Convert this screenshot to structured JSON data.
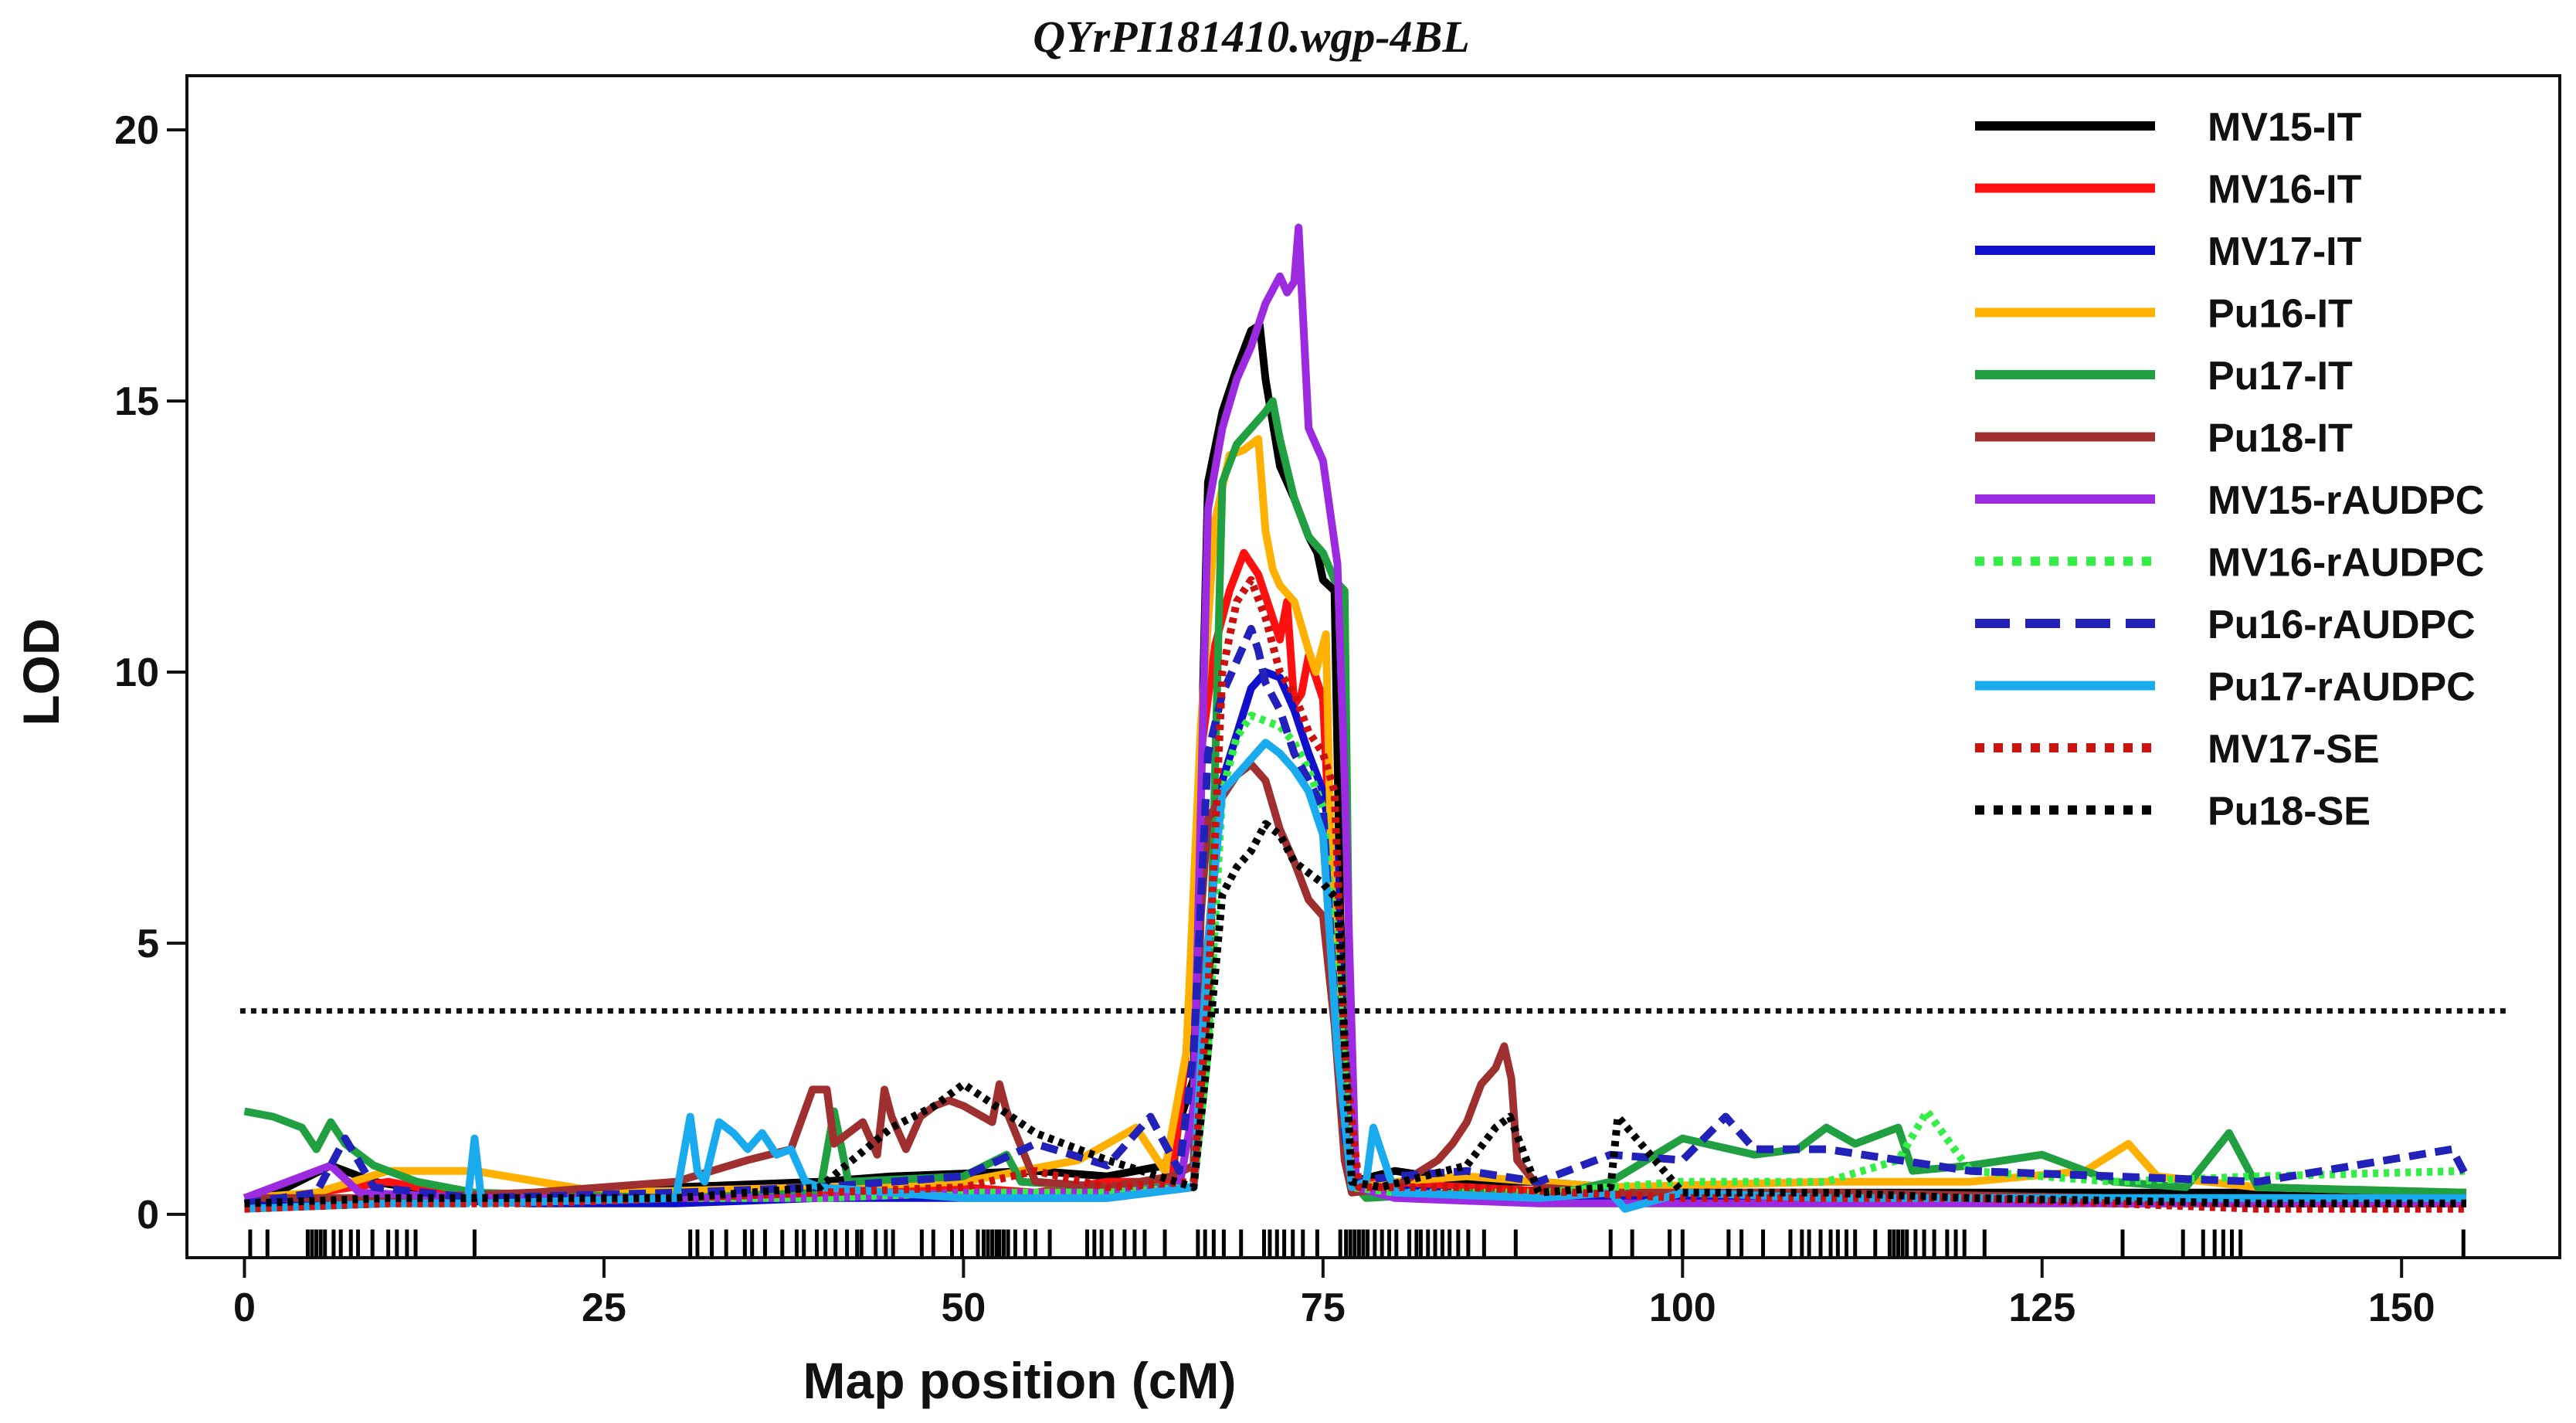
{
  "chart_data": {
    "type": "line",
    "title": "QYrPI181410.wgp-4BL",
    "xlabel": "Map position (cM)",
    "ylabel": "LOD",
    "xlim": [
      -4,
      161
    ],
    "ylim": [
      -0.8,
      21
    ],
    "xticks": [
      0,
      25,
      50,
      75,
      100,
      125,
      150
    ],
    "yticks": [
      0,
      5,
      10,
      15,
      20
    ],
    "threshold": 3.75,
    "legend_position": "top-right",
    "markers": [
      0.4,
      1.6,
      4.4,
      4.7,
      5.0,
      5.3,
      5.6,
      6.2,
      6.7,
      7.4,
      7.9,
      8.9,
      10.0,
      10.6,
      11.3,
      11.9,
      16.0,
      31.0,
      31.5,
      32.5,
      33.5,
      34.8,
      35.3,
      36.2,
      37.4,
      38.4,
      38.9,
      39.8,
      40.4,
      41.1,
      41.9,
      42.6,
      42.9,
      43.9,
      44.6,
      45.1,
      47.1,
      47.9,
      49.2,
      49.9,
      51.0,
      51.4,
      51.7,
      52.0,
      52.3,
      52.5,
      52.8,
      53.1,
      53.6,
      54.3,
      55.0,
      56.0,
      58.6,
      59.1,
      59.6,
      60.3,
      61.2,
      61.9,
      62.6,
      64.0,
      66.3,
      66.8,
      67.4,
      68.1,
      69.3,
      70.9,
      71.3,
      71.8,
      72.3,
      72.9,
      73.6,
      74.6,
      76.2,
      76.6,
      76.9,
      77.2,
      77.5,
      77.8,
      78.1,
      78.6,
      79.1,
      79.6,
      80.1,
      81.0,
      81.5,
      81.8,
      82.3,
      82.8,
      83.3,
      83.8,
      84.4,
      85.1,
      86.2,
      88.4,
      95.0,
      96.5,
      99.1,
      100.0,
      103.2,
      104.1,
      105.6,
      107.5,
      108.3,
      108.8,
      109.6,
      110.3,
      110.8,
      111.4,
      112.0,
      113.4,
      114.4,
      114.7,
      115.0,
      115.3,
      115.6,
      116.2,
      116.8,
      117.5,
      118.4,
      119.0,
      119.6,
      121.0,
      130.6,
      134.8,
      136.2,
      137.0,
      137.6,
      138.2,
      138.8,
      154.3
    ],
    "series": [
      {
        "name": "MV15-IT",
        "color": "#000000",
        "style": "solid",
        "x": [
          0,
          3,
          6,
          9,
          16,
          30,
          40,
          45,
          55,
          60,
          64,
          66,
          67,
          68,
          69,
          70,
          70.6,
          71,
          72,
          73,
          74,
          74.6,
          75,
          75.8,
          76.2,
          77,
          80,
          85,
          90,
          100,
          120,
          140,
          154.5
        ],
        "y": [
          0.3,
          0.5,
          0.9,
          0.6,
          0.3,
          0.5,
          0.6,
          0.7,
          0.8,
          0.7,
          0.9,
          2.5,
          13.5,
          14.8,
          15.6,
          16.3,
          16.4,
          15.4,
          13.8,
          13.2,
          12.5,
          12.2,
          11.7,
          11.5,
          5.5,
          0.6,
          0.8,
          0.6,
          0.6,
          0.4,
          0.4,
          0.4,
          0.3
        ]
      },
      {
        "name": "MV16-IT",
        "color": "#ff1010",
        "style": "solid",
        "x": [
          0,
          5,
          10,
          16,
          30,
          40,
          50,
          55,
          60,
          64.5,
          65.5,
          66.5,
          67.5,
          68.5,
          69.5,
          70.5,
          71.5,
          72,
          72.5,
          73,
          73.5,
          74,
          75,
          75.8,
          76.5,
          77.2,
          85,
          100,
          120,
          140,
          154.5
        ],
        "y": [
          0.2,
          0.4,
          0.6,
          0.3,
          0.3,
          0.4,
          0.5,
          0.4,
          0.6,
          0.6,
          3.0,
          8.5,
          10.5,
          11.5,
          12.2,
          11.8,
          11.0,
          10.6,
          11.3,
          9.4,
          9.6,
          10.3,
          9.5,
          5.0,
          2.5,
          0.6,
          0.5,
          0.3,
          0.3,
          0.2,
          0.2
        ]
      },
      {
        "name": "MV17-IT",
        "color": "#1010cc",
        "style": "solid",
        "x": [
          0,
          10,
          20,
          30,
          40,
          50,
          60,
          66,
          67,
          68,
          70,
          71,
          72,
          73,
          74,
          75,
          75.8,
          76.5,
          77.2,
          90,
          110,
          130,
          154.5
        ],
        "y": [
          0.2,
          0.3,
          0.2,
          0.2,
          0.3,
          0.3,
          0.3,
          0.5,
          5.0,
          8.0,
          9.7,
          10.0,
          9.9,
          9.3,
          8.5,
          7.8,
          6.5,
          3.0,
          0.5,
          0.3,
          0.3,
          0.2,
          0.2
        ]
      },
      {
        "name": "Pu16-IT",
        "color": "#ffb000",
        "style": "solid",
        "x": [
          0,
          5,
          10,
          16,
          25,
          40,
          50,
          58,
          62,
          64,
          65.5,
          66.5,
          67.5,
          68.5,
          69.5,
          70.5,
          71,
          71.5,
          72,
          73,
          74,
          74.5,
          75.2,
          75.7,
          76.2,
          77.5,
          80,
          85,
          95,
          110,
          120,
          128,
          131,
          133,
          140,
          154.5
        ],
        "y": [
          0.3,
          0.4,
          0.8,
          0.8,
          0.4,
          0.5,
          0.6,
          1.0,
          1.6,
          0.8,
          3.0,
          9.0,
          12.8,
          14.0,
          14.1,
          14.3,
          12.6,
          11.9,
          11.6,
          11.3,
          10.4,
          10.0,
          10.7,
          5.0,
          2.0,
          0.5,
          0.6,
          0.7,
          0.5,
          0.6,
          0.6,
          0.8,
          1.3,
          0.7,
          0.5,
          0.4
        ]
      },
      {
        "name": "Pu17-IT",
        "color": "#20a040",
        "style": "solid",
        "x": [
          0,
          2,
          4,
          5,
          6,
          7,
          9,
          12,
          16,
          30,
          40,
          41,
          42,
          50,
          53,
          54,
          60,
          66,
          67,
          68,
          69,
          70,
          71,
          71.5,
          72,
          73,
          74,
          75,
          75.8,
          76.5,
          77,
          78,
          85,
          90,
          95,
          100,
          105,
          108,
          110,
          112,
          115,
          116,
          120,
          125,
          130,
          135,
          138,
          140,
          154.5
        ],
        "y": [
          1.9,
          1.8,
          1.6,
          1.2,
          1.7,
          1.3,
          0.9,
          0.6,
          0.4,
          0.3,
          0.4,
          1.9,
          0.6,
          0.7,
          1.1,
          0.6,
          0.5,
          0.5,
          3.0,
          13.5,
          14.2,
          14.5,
          14.8,
          15.0,
          14.3,
          13.2,
          12.5,
          12.2,
          11.7,
          11.5,
          0.6,
          0.3,
          0.4,
          0.3,
          0.6,
          1.4,
          1.1,
          1.2,
          1.6,
          1.3,
          1.6,
          0.8,
          0.9,
          1.1,
          0.6,
          0.5,
          1.5,
          0.5,
          0.4
        ]
      },
      {
        "name": "Pu18-IT",
        "color": "#a03030",
        "style": "solid",
        "x": [
          0,
          10,
          20,
          30,
          35,
          38,
          39.5,
          40.5,
          41,
          43,
          44,
          44.5,
          45,
          46,
          47,
          48,
          49,
          50,
          52,
          52.5,
          53,
          55,
          60,
          64.5,
          66,
          66.5,
          67,
          68,
          69,
          70,
          71,
          72,
          73,
          74,
          75,
          75.8,
          76.5,
          77,
          80,
          83,
          84,
          85,
          86,
          87,
          87.6,
          88.1,
          88.5,
          90,
          95,
          110,
          130,
          154.5
        ],
        "y": [
          0.3,
          0.3,
          0.4,
          0.6,
          1.0,
          1.2,
          2.3,
          2.3,
          1.3,
          1.7,
          1.1,
          2.3,
          1.8,
          1.2,
          1.8,
          2.0,
          2.1,
          2.0,
          1.7,
          2.4,
          1.9,
          0.6,
          0.5,
          0.7,
          0.9,
          5.5,
          7.3,
          7.7,
          8.1,
          8.3,
          8.0,
          7.1,
          6.5,
          5.8,
          5.5,
          3.5,
          1.0,
          0.4,
          0.5,
          1.0,
          1.3,
          1.7,
          2.4,
          2.7,
          3.1,
          2.5,
          1.0,
          0.5,
          0.4,
          0.4,
          0.3,
          0.3
        ]
      },
      {
        "name": "MV15-rAUDPC",
        "color": "#9c2ae0",
        "style": "solid",
        "x": [
          0,
          6,
          8,
          16,
          30,
          40,
          50,
          60,
          65,
          66,
          67,
          68,
          69,
          70,
          71,
          72,
          72.5,
          73,
          73.3,
          74,
          75,
          76,
          76.5,
          77.3,
          80,
          90,
          100,
          120,
          140,
          154.5
        ],
        "y": [
          0.3,
          0.9,
          0.4,
          0.3,
          0.3,
          0.3,
          0.4,
          0.4,
          0.5,
          2.0,
          13.0,
          14.5,
          15.4,
          16.0,
          16.8,
          17.3,
          17.0,
          17.2,
          18.2,
          14.5,
          13.9,
          12.0,
          8.0,
          0.5,
          0.3,
          0.2,
          0.2,
          0.2,
          0.2,
          0.2
        ]
      },
      {
        "name": "MV16-rAUDPC",
        "color": "#33ee44",
        "style": "dotted",
        "x": [
          0,
          10,
          20,
          30,
          40,
          50,
          60,
          66,
          67,
          68,
          69,
          70,
          71,
          72,
          73,
          74,
          75,
          76,
          77,
          80,
          90,
          100,
          110,
          115,
          117,
          120,
          130,
          140,
          154.5
        ],
        "y": [
          0.2,
          0.3,
          0.2,
          0.3,
          0.3,
          0.4,
          0.4,
          0.5,
          3.0,
          7.8,
          8.8,
          9.2,
          9.1,
          9.0,
          8.7,
          8.2,
          7.5,
          4.5,
          0.5,
          0.4,
          0.4,
          0.6,
          0.6,
          1.0,
          1.9,
          0.8,
          0.6,
          0.7,
          0.8
        ]
      },
      {
        "name": "Pu16-rAUDPC",
        "color": "#2222bb",
        "style": "dashed",
        "x": [
          0,
          5,
          7,
          9,
          16,
          30,
          40,
          50,
          55,
          60,
          63,
          65,
          66,
          67,
          68,
          69,
          70,
          70.5,
          71,
          72,
          73,
          74,
          75,
          75.8,
          76.5,
          77,
          80,
          85,
          90,
          95,
          100,
          103,
          105,
          110,
          120,
          140,
          153.5,
          154.5
        ],
        "y": [
          0.2,
          0.4,
          1.4,
          0.5,
          0.3,
          0.4,
          0.5,
          0.7,
          1.3,
          0.9,
          1.8,
          0.8,
          3.0,
          8.5,
          9.6,
          10.2,
          10.8,
          10.4,
          9.8,
          9.3,
          8.5,
          8.0,
          7.5,
          4.0,
          1.5,
          0.6,
          0.7,
          0.8,
          0.6,
          1.1,
          1.0,
          1.8,
          1.2,
          1.2,
          0.8,
          0.6,
          1.2,
          0.7
        ]
      },
      {
        "name": "Pu17-rAUDPC",
        "color": "#1aaaee",
        "style": "solid",
        "x": [
          0,
          10,
          15.5,
          16,
          16.5,
          30,
          31,
          31.5,
          32,
          33,
          34,
          35,
          36,
          37,
          38,
          39,
          40,
          50,
          60,
          66,
          67,
          68,
          69,
          70,
          71,
          72,
          73,
          74,
          75,
          76,
          77,
          78,
          78.5,
          80,
          90,
          95,
          96,
          100,
          110,
          120,
          140,
          154.5
        ],
        "y": [
          0.1,
          0.2,
          0.2,
          1.4,
          0.2,
          0.3,
          1.8,
          0.8,
          0.6,
          1.7,
          1.5,
          1.2,
          1.5,
          1.1,
          1.2,
          0.6,
          0.5,
          0.3,
          0.3,
          0.5,
          5.0,
          7.8,
          8.1,
          8.4,
          8.7,
          8.5,
          8.2,
          7.8,
          7.0,
          3.0,
          0.5,
          0.6,
          1.6,
          0.4,
          0.3,
          0.4,
          0.1,
          0.4,
          0.3,
          0.3,
          0.3,
          0.3
        ]
      },
      {
        "name": "MV17-SE",
        "color": "#cc1111",
        "style": "dotted",
        "x": [
          0,
          10,
          20,
          30,
          40,
          50,
          55,
          60,
          66,
          67,
          68,
          69,
          70,
          71,
          72,
          73,
          74,
          75,
          75.8,
          76.5,
          77.5,
          85,
          100,
          120,
          140,
          154.5
        ],
        "y": [
          0.1,
          0.2,
          0.2,
          0.3,
          0.4,
          0.5,
          0.8,
          0.5,
          0.6,
          4.0,
          10.0,
          11.3,
          11.7,
          11.0,
          10.0,
          9.6,
          8.9,
          8.5,
          7.8,
          3.0,
          0.5,
          0.5,
          0.3,
          0.3,
          0.1,
          0.1
        ]
      },
      {
        "name": "Pu18-SE",
        "color": "#000000",
        "style": "dotted",
        "x": [
          0,
          10,
          20,
          30,
          40,
          45,
          48,
          50,
          55,
          60,
          66,
          67,
          68,
          69,
          70,
          71,
          72,
          73,
          74,
          75,
          76,
          77,
          79,
          85,
          87,
          88,
          90,
          95,
          95.5,
          100,
          110,
          120,
          140,
          154.5
        ],
        "y": [
          0.2,
          0.3,
          0.3,
          0.3,
          0.5,
          1.6,
          2.0,
          2.4,
          1.5,
          1.0,
          0.5,
          3.0,
          5.9,
          6.4,
          6.7,
          7.2,
          7.0,
          6.5,
          6.3,
          6.1,
          5.8,
          0.6,
          0.5,
          0.9,
          1.6,
          1.8,
          0.4,
          0.5,
          1.8,
          0.4,
          0.4,
          0.3,
          0.2,
          0.2
        ]
      }
    ]
  }
}
